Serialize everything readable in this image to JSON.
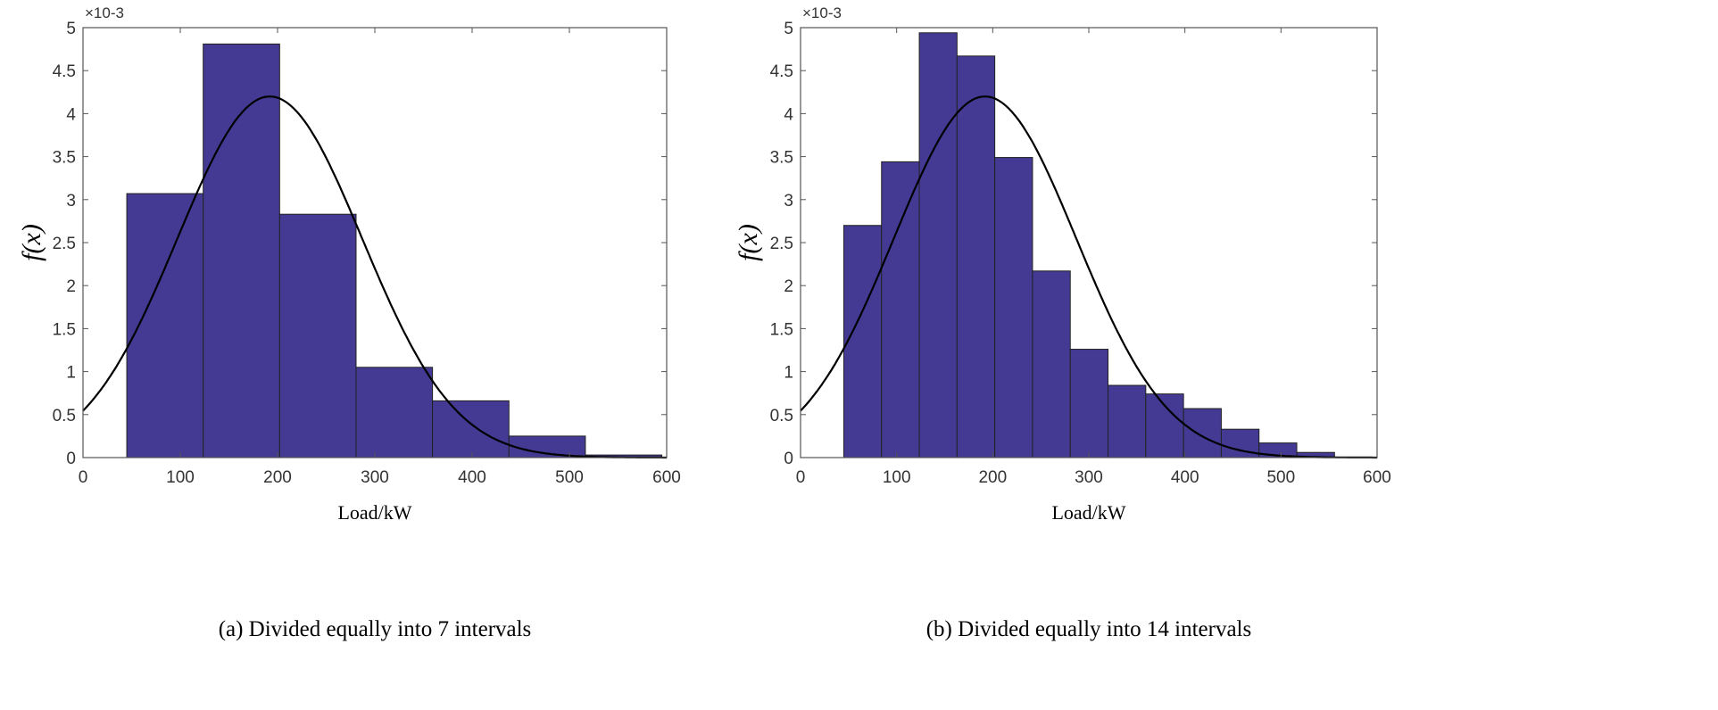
{
  "colors": {
    "bar": "#443a94",
    "bar_edge": "#222222",
    "curve": "#000000",
    "axis": "#555555"
  },
  "chart_data": [
    {
      "type": "bar",
      "caption": "(a) Divided equally into 7 intervals",
      "xlabel": "Load/kW",
      "ylabel": "f(x)",
      "y_multiplier": "×10-3",
      "xlim": [
        0,
        600
      ],
      "ylim": [
        0,
        5
      ],
      "xticks": [
        "0",
        "100",
        "200",
        "300",
        "400",
        "500",
        "600"
      ],
      "yticks": [
        "0",
        "0.5",
        "1",
        "1.5",
        "2",
        "2.5",
        "3",
        "3.5",
        "4",
        "4.5",
        "5"
      ],
      "bin_range": [
        45,
        595
      ],
      "values": [
        3.07,
        4.81,
        2.83,
        1.05,
        0.66,
        0.25,
        0.03
      ],
      "curve": {
        "type": "normal-pdf",
        "mean": 192,
        "std": 95
      }
    },
    {
      "type": "bar",
      "caption": "(b) Divided equally into 14 intervals",
      "xlabel": "Load/kW",
      "ylabel": "f(x)",
      "y_multiplier": "×10-3",
      "xlim": [
        0,
        600
      ],
      "ylim": [
        0,
        5
      ],
      "xticks": [
        "0",
        "100",
        "200",
        "300",
        "400",
        "500",
        "600"
      ],
      "yticks": [
        "0",
        "0.5",
        "1",
        "1.5",
        "2",
        "2.5",
        "3",
        "3.5",
        "4",
        "4.5",
        "5"
      ],
      "bin_range": [
        45,
        595
      ],
      "values": [
        2.7,
        3.44,
        4.94,
        4.67,
        3.49,
        2.17,
        1.26,
        0.84,
        0.74,
        0.57,
        0.33,
        0.17,
        0.06,
        0.0
      ],
      "curve": {
        "type": "normal-pdf",
        "mean": 192,
        "std": 95
      }
    }
  ]
}
